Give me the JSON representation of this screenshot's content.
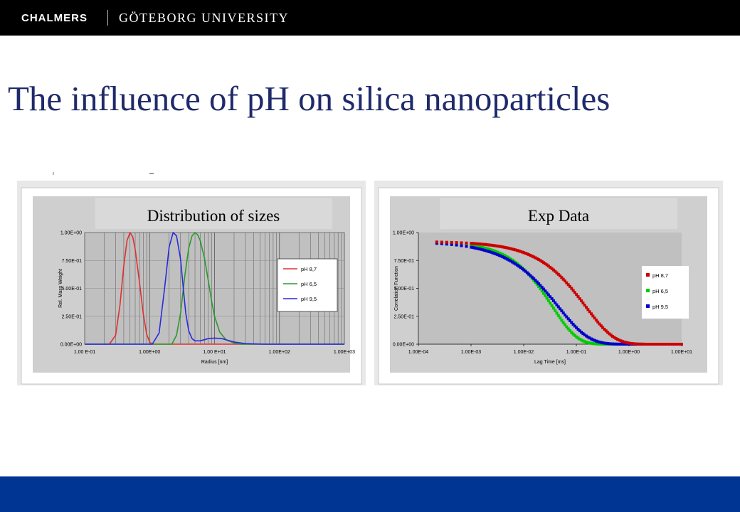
{
  "header": {
    "brand_left": "CHALMERS",
    "brand_right": "GÖTEBORG UNIVERSITY"
  },
  "slide": {
    "title": "The influence of pH on silica nanoparticles"
  },
  "colors": {
    "title": "#1f2a6b",
    "top_bar": "#000000",
    "bottom_bar": "#003594",
    "plot_bg": "#c0c0c0",
    "pH_8_7": "#e03030",
    "pH_6_5": "#2a9a2a",
    "pH_9_5": "#2a2ae0",
    "pH_8_7_markers": "#cc0000",
    "pH_6_5_markers": "#00cc00",
    "pH_9_5_markers": "#0000cc"
  },
  "chart_data": [
    {
      "type": "line",
      "banner": "Distribution of sizes",
      "xlabel": "Radius [nm]",
      "ylabel": "Rel. Mass Weight",
      "x_scale": "log",
      "xlim": [
        0.1,
        1000
      ],
      "ylim": [
        0,
        1
      ],
      "x_ticks": [
        "1.00 E-01",
        "1.00E+00",
        "1.00 E+01",
        "1.00E+02",
        "1.00E+03"
      ],
      "y_ticks": [
        "0.00E+00",
        "2.50E-01",
        "5.00E-01",
        "7.50E-01",
        "1.00E+00"
      ],
      "grid": "vertical-log",
      "legend": "right",
      "series": [
        {
          "name": "pH 8,7",
          "x": [
            0.24,
            0.3,
            0.35,
            0.4,
            0.45,
            0.5,
            0.55,
            0.6,
            0.7,
            0.8,
            0.9,
            1.0,
            1.1
          ],
          "values": [
            0,
            0.08,
            0.35,
            0.7,
            0.93,
            1.0,
            0.96,
            0.85,
            0.55,
            0.27,
            0.09,
            0.02,
            0
          ]
        },
        {
          "name": "pH 6,5",
          "x": [
            2.2,
            2.6,
            3,
            3.5,
            4,
            4.5,
            5,
            5.5,
            6,
            7,
            8,
            9,
            10,
            12,
            15,
            20,
            25
          ],
          "values": [
            0,
            0.08,
            0.28,
            0.62,
            0.86,
            0.97,
            1.0,
            0.98,
            0.93,
            0.77,
            0.57,
            0.39,
            0.25,
            0.11,
            0.04,
            0.01,
            0
          ]
        },
        {
          "name": "pH 9,5",
          "x": [
            1.1,
            1.4,
            1.7,
            2.0,
            2.3,
            2.6,
            3.0,
            3.3,
            3.6,
            4.0,
            4.5,
            5,
            6,
            8,
            10,
            13,
            16,
            20,
            30,
            60
          ],
          "values": [
            0,
            0.1,
            0.5,
            0.87,
            1.0,
            0.97,
            0.76,
            0.5,
            0.28,
            0.12,
            0.05,
            0.03,
            0.03,
            0.05,
            0.055,
            0.05,
            0.035,
            0.02,
            0.005,
            0
          ]
        }
      ]
    },
    {
      "type": "scatter",
      "banner": "Exp Data",
      "xlabel": "Lag Time [ms]",
      "ylabel": "Correlation Function",
      "x_scale": "log",
      "xlim": [
        0.0001,
        10
      ],
      "ylim": [
        0,
        1
      ],
      "x_ticks": [
        "1.00E-04",
        "1.00E-03",
        "1.00E-02",
        "1.00E-01",
        "1.00E+00",
        "1.00E+01"
      ],
      "y_ticks": [
        "0.00E+00",
        "2.50E-01",
        "5.00E-01",
        "7.50E-01",
        "1.00E+00"
      ],
      "grid": "none",
      "legend": "right",
      "series": [
        {
          "name": "pH 8,7",
          "tau": 0.15,
          "beta": 0.8,
          "amplitude": 0.92
        },
        {
          "name": "pH 6,5",
          "tau": 0.035,
          "beta": 0.92,
          "amplitude": 0.92
        },
        {
          "name": "pH 9,5",
          "tau": 0.045,
          "beta": 0.75,
          "amplitude": 0.92
        }
      ]
    }
  ]
}
